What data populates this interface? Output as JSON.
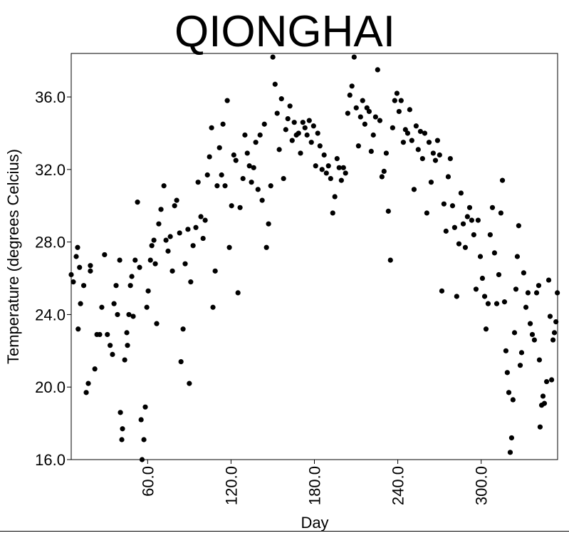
{
  "chart_data": {
    "type": "scatter",
    "title": "QIONGHAI",
    "x_label": "Day",
    "y_label": "Temperature (degrees Celcius)",
    "xlim": [
      5,
      355
    ],
    "ylim": [
      16,
      38.4
    ],
    "xticks": [
      {
        "value": 60,
        "label": "60.0"
      },
      {
        "value": 120,
        "label": "120.0"
      },
      {
        "value": 180,
        "label": "180.0"
      },
      {
        "value": 240,
        "label": "240.0"
      },
      {
        "value": 300,
        "label": "300.0"
      }
    ],
    "yticks": [
      {
        "value": 16,
        "label": "16.0"
      },
      {
        "value": 20,
        "label": "20.0"
      },
      {
        "value": 24,
        "label": "24.0"
      },
      {
        "value": 28,
        "label": "28.0"
      },
      {
        "value": 32,
        "label": "32.0"
      },
      {
        "value": 36,
        "label": "36.0"
      }
    ],
    "series": [
      {
        "color": "#000000",
        "x": [
          5,
          6.5,
          8.6,
          9.6,
          11,
          11.7,
          10,
          14,
          15.8,
          17.3,
          18.8,
          18.8,
          22,
          23.5,
          25.5,
          27,
          29,
          31,
          33,
          34.7,
          35.8,
          37.3,
          38.3,
          39.9,
          40.4,
          41.4,
          41.9,
          43.5,
          45,
          45.5,
          46.5,
          47.6,
          48.6,
          49.6,
          51,
          52.7,
          54.2,
          55.3,
          56,
          57.3,
          58.3,
          59.4,
          60.4,
          62,
          63,
          64.5,
          65.5,
          66.5,
          68,
          69.6,
          71.7,
          73.2,
          74.7,
          76.3,
          77.8,
          79.4,
          80.9,
          83,
          84,
          85.5,
          87,
          89,
          90,
          91,
          92.7,
          94.7,
          96.3,
          98.3,
          99.9,
          101.4,
          103,
          104.5,
          106,
          107,
          108.6,
          110,
          111.7,
          113.2,
          114.2,
          115.7,
          117.3,
          118.8,
          120.4,
          122,
          123.5,
          125,
          126.5,
          128.6,
          130,
          131.7,
          133.2,
          134.7,
          136.3,
          137.8,
          139.4,
          140.9,
          142.4,
          144,
          145.5,
          147,
          148.6,
          150.1,
          151.7,
          153.2,
          154.7,
          156.3,
          157.8,
          159.4,
          160.9,
          162.4,
          164,
          165.5,
          167,
          168.6,
          170,
          171.7,
          173.2,
          174.7,
          176.3,
          177.8,
          179.4,
          180.9,
          182.4,
          184,
          185.5,
          187,
          188.6,
          190.1,
          191.7,
          193.2,
          194.7,
          196.3,
          197.8,
          199.4,
          200.9,
          202.4,
          204,
          205.5,
          207,
          208.6,
          210.1,
          211.7,
          213.2,
          214.7,
          216.3,
          217.8,
          219.4,
          220.9,
          222.4,
          224,
          225.5,
          227.1,
          228.6,
          230.1,
          231.7,
          233.2,
          234.7,
          236.3,
          237.8,
          239.4,
          240.9,
          242.4,
          244,
          245.5,
          247.1,
          248.6,
          250.1,
          251.7,
          253.2,
          254.7,
          256.3,
          257.8,
          259.4,
          260.9,
          262.5,
          264,
          265.5,
          267.1,
          268.6,
          270.1,
          271.7,
          273.2,
          274.7,
          276.3,
          277.8,
          279.4,
          280.9,
          282.4,
          284,
          285.5,
          287.1,
          288.6,
          290.1,
          291.7,
          293.2,
          294.7,
          296.3,
          297.8,
          299.4,
          300.9,
          302.5,
          303.5,
          305,
          306.5,
          308.1,
          309.6,
          311.2,
          312.7,
          314.2,
          315.3,
          316.8,
          317.8,
          318.8,
          319.9,
          320.9,
          321.9,
          322.9,
          324,
          325,
          326,
          327,
          328.1,
          329.1,
          330.6,
          332.2,
          333.7,
          335.3,
          336.8,
          338.3,
          339.9,
          341.4,
          341.9,
          342.4,
          343.5,
          344.5,
          345.5,
          347.1,
          348.6,
          349.6,
          350.7,
          351.7,
          352.7,
          353.8,
          354.8
        ],
        "values": [
          26.2,
          25.8,
          27.2,
          27.7,
          26.6,
          24.6,
          23.2,
          25.6,
          19.7,
          20.2,
          26.4,
          26.7,
          21,
          22.9,
          22.9,
          24.4,
          27.3,
          22.9,
          22.3,
          21.8,
          24.6,
          25.6,
          24,
          27,
          18.6,
          17.1,
          17.7,
          21.5,
          23,
          22.3,
          24,
          25.6,
          26.1,
          23.9,
          27,
          30.2,
          26.6,
          18.2,
          16,
          17.1,
          18.9,
          24.4,
          25.3,
          27,
          27.8,
          28.1,
          26.8,
          23.5,
          29,
          29.8,
          31.1,
          28.1,
          27.5,
          28.3,
          26.4,
          30,
          30.3,
          28.5,
          21.4,
          23.2,
          26.8,
          28.7,
          20.2,
          25.8,
          27.8,
          28.8,
          31.3,
          29.4,
          28.2,
          29.2,
          31.7,
          32.7,
          34.3,
          24.4,
          26.4,
          31.1,
          33.2,
          31.7,
          34.5,
          31.1,
          35.8,
          27.7,
          30,
          32.8,
          32.5,
          25.2,
          29.9,
          31.5,
          33.9,
          32.9,
          32.2,
          31.3,
          32.1,
          33.5,
          30.9,
          33.9,
          30.3,
          34.5,
          27.7,
          29,
          31.1,
          38.2,
          36.7,
          35.1,
          33.1,
          35.9,
          31.5,
          34.2,
          34.8,
          35.5,
          33.6,
          34.6,
          33.9,
          34,
          32.9,
          34.6,
          34.3,
          33.9,
          34.7,
          33.5,
          34.4,
          32.2,
          34,
          33.3,
          32,
          32.8,
          31.8,
          32.2,
          31.5,
          29.6,
          30.5,
          32.6,
          32.1,
          31.4,
          32.1,
          31.8,
          35.1,
          36.1,
          36.6,
          38.2,
          35.4,
          33.3,
          34.9,
          35.8,
          34.5,
          35.4,
          35.2,
          33,
          33.9,
          34.9,
          37.5,
          34.7,
          31.6,
          31.9,
          32.9,
          29.7,
          27,
          34.3,
          35.8,
          36.2,
          35.2,
          35.8,
          33.5,
          34.2,
          34,
          35.3,
          33.6,
          30.9,
          34.4,
          33.1,
          34.1,
          32.6,
          34,
          29.6,
          33.5,
          31.3,
          32.9,
          32.5,
          33.6,
          32.8,
          25.3,
          30.1,
          28.6,
          31.6,
          32.6,
          30,
          28.8,
          25,
          27.9,
          30.7,
          29,
          27.7,
          29.4,
          29.9,
          29.2,
          28.4,
          25.4,
          29.2,
          27.2,
          26,
          25,
          23.2,
          24.6,
          28.4,
          29.9,
          27.4,
          24.6,
          26.2,
          29.6,
          31.4,
          24.7,
          22,
          20.8,
          19.7,
          16.4,
          17.2,
          19.3,
          23,
          25.4,
          27.2,
          28.9,
          21.2,
          21.9,
          26.3,
          24.4,
          25.2,
          23.5,
          22.9,
          22.6,
          25.2,
          25.6,
          21.5,
          17.8,
          19,
          19.5,
          19.1,
          20.3,
          25.9,
          23.9,
          20.4,
          22.6,
          23,
          23.6,
          25.2
        ]
      }
    ]
  }
}
